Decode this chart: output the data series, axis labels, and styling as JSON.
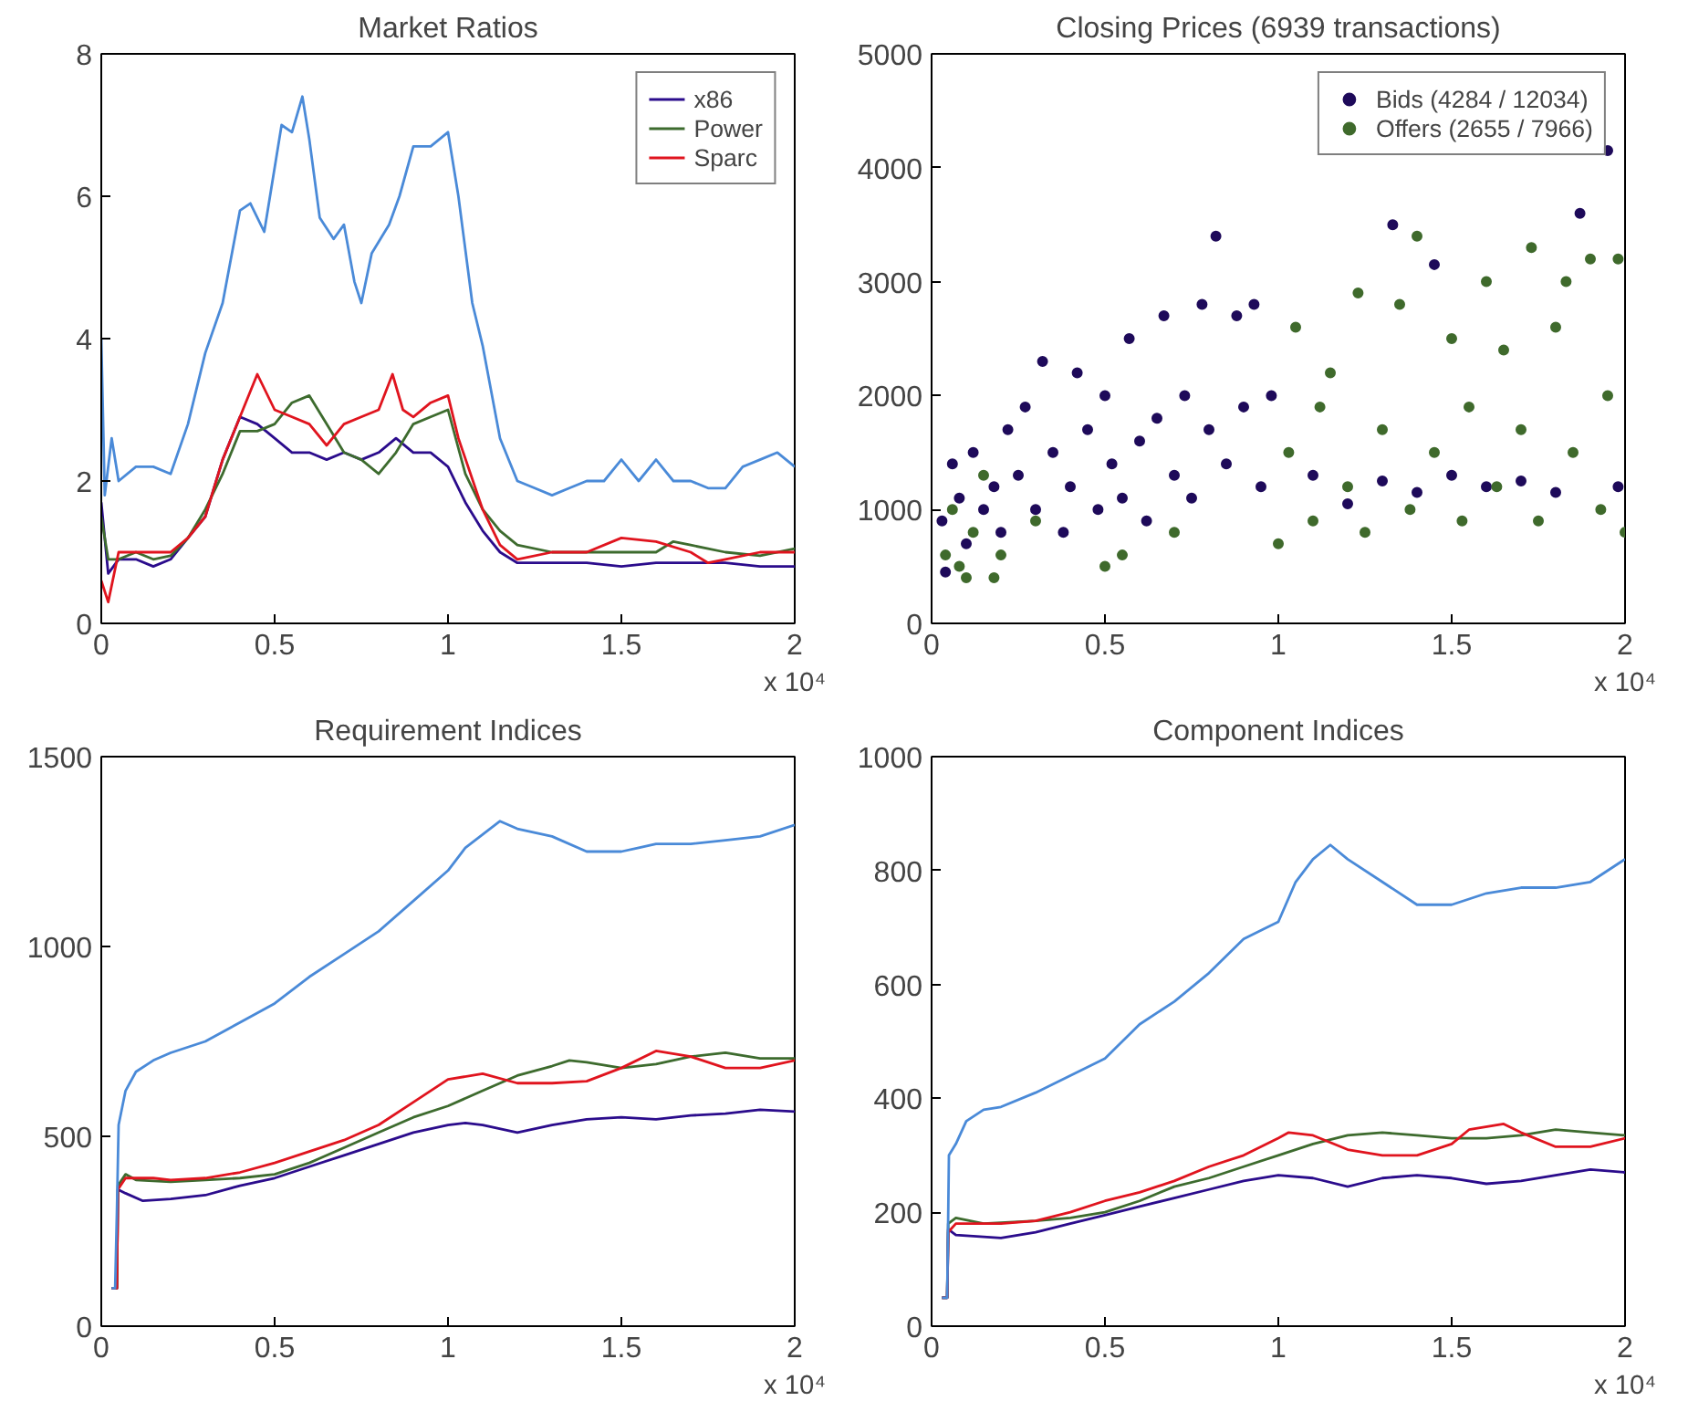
{
  "chart_data": [
    {
      "type": "line",
      "title": "Market Ratios",
      "xlabel": "x 10⁴",
      "legend": "top right",
      "grid": false,
      "xlim": [
        0,
        2
      ],
      "xticks": [
        0,
        0.5,
        1,
        1.5,
        2
      ],
      "ylim": [
        0,
        8
      ],
      "yticks": [
        0,
        2,
        4,
        6,
        8
      ],
      "series": [
        {
          "name": "x86",
          "color": "#2b0c8c",
          "x": [
            0,
            0.02,
            0.05,
            0.1,
            0.15,
            0.2,
            0.25,
            0.3,
            0.35,
            0.4,
            0.45,
            0.5,
            0.55,
            0.6,
            0.65,
            0.7,
            0.75,
            0.8,
            0.85,
            0.9,
            0.95,
            1.0,
            1.05,
            1.1,
            1.15,
            1.2,
            1.3,
            1.4,
            1.5,
            1.6,
            1.7,
            1.8,
            1.9,
            2.0
          ],
          "values": [
            1.7,
            0.7,
            0.9,
            0.9,
            0.8,
            0.9,
            1.2,
            1.5,
            2.3,
            2.9,
            2.8,
            2.6,
            2.4,
            2.4,
            2.3,
            2.4,
            2.3,
            2.4,
            2.6,
            2.4,
            2.4,
            2.2,
            1.7,
            1.3,
            1.0,
            0.85,
            0.85,
            0.85,
            0.8,
            0.85,
            0.85,
            0.85,
            0.8,
            0.8
          ]
        },
        {
          "name": "Power",
          "color": "#3d6b2e",
          "x": [
            0,
            0.02,
            0.05,
            0.1,
            0.15,
            0.2,
            0.25,
            0.3,
            0.35,
            0.4,
            0.45,
            0.5,
            0.55,
            0.6,
            0.65,
            0.7,
            0.75,
            0.8,
            0.85,
            0.9,
            0.95,
            1.0,
            1.05,
            1.1,
            1.15,
            1.2,
            1.3,
            1.4,
            1.5,
            1.6,
            1.65,
            1.7,
            1.8,
            1.9,
            2.0
          ],
          "values": [
            1.5,
            0.9,
            0.9,
            1.0,
            0.9,
            0.95,
            1.2,
            1.6,
            2.1,
            2.7,
            2.7,
            2.8,
            3.1,
            3.2,
            2.8,
            2.4,
            2.3,
            2.1,
            2.4,
            2.8,
            2.9,
            3.0,
            2.1,
            1.6,
            1.3,
            1.1,
            1.0,
            1.0,
            1.0,
            1.0,
            1.15,
            1.1,
            1.0,
            0.95,
            1.05
          ]
        },
        {
          "name": "Sparc",
          "color": "#e0141e",
          "x": [
            0,
            0.02,
            0.05,
            0.1,
            0.15,
            0.2,
            0.25,
            0.3,
            0.35,
            0.4,
            0.45,
            0.5,
            0.55,
            0.6,
            0.65,
            0.7,
            0.75,
            0.8,
            0.84,
            0.87,
            0.9,
            0.95,
            1.0,
            1.03,
            1.1,
            1.15,
            1.2,
            1.3,
            1.4,
            1.5,
            1.6,
            1.7,
            1.75,
            1.8,
            1.9,
            2.0
          ],
          "values": [
            0.6,
            0.3,
            1.0,
            1.0,
            1.0,
            1.0,
            1.2,
            1.5,
            2.3,
            2.9,
            3.5,
            3.0,
            2.9,
            2.8,
            2.5,
            2.8,
            2.9,
            3.0,
            3.5,
            3.0,
            2.9,
            3.1,
            3.2,
            2.6,
            1.6,
            1.1,
            0.9,
            1.0,
            1.0,
            1.2,
            1.15,
            1.0,
            0.85,
            0.9,
            1.0,
            1.0
          ]
        },
        {
          "color": "#4a8ad8",
          "x": [
            0,
            0.01,
            0.03,
            0.05,
            0.1,
            0.15,
            0.2,
            0.25,
            0.3,
            0.35,
            0.4,
            0.43,
            0.47,
            0.52,
            0.55,
            0.58,
            0.6,
            0.63,
            0.67,
            0.7,
            0.73,
            0.75,
            0.78,
            0.83,
            0.86,
            0.9,
            0.95,
            1.0,
            1.03,
            1.07,
            1.1,
            1.15,
            1.2,
            1.25,
            1.3,
            1.35,
            1.4,
            1.45,
            1.5,
            1.55,
            1.6,
            1.65,
            1.7,
            1.75,
            1.8,
            1.85,
            1.9,
            1.95,
            2.0
          ],
          "values": [
            4.0,
            1.8,
            2.6,
            2.0,
            2.2,
            2.2,
            2.1,
            2.8,
            3.8,
            4.5,
            5.8,
            5.9,
            5.5,
            7.0,
            6.9,
            7.4,
            6.8,
            5.7,
            5.4,
            5.6,
            4.8,
            4.5,
            5.2,
            5.6,
            6.0,
            6.7,
            6.7,
            6.9,
            6.0,
            4.5,
            3.9,
            2.6,
            2.0,
            1.9,
            1.8,
            1.9,
            2.0,
            2.0,
            2.3,
            2.0,
            2.3,
            2.0,
            2.0,
            1.9,
            1.9,
            2.2,
            2.3,
            2.4,
            2.2
          ]
        }
      ]
    },
    {
      "type": "scatter",
      "title": "Closing Prices (6939 transactions)",
      "xlabel": "x 10⁴",
      "legend": "top right",
      "grid": false,
      "marker": "circle",
      "xlim": [
        0,
        2
      ],
      "xticks": [
        0,
        0.5,
        1,
        1.5,
        2
      ],
      "ylim": [
        0,
        5000
      ],
      "yticks": [
        0,
        1000,
        2000,
        3000,
        4000,
        5000
      ],
      "series": [
        {
          "name": "Bids (4284 / 12034)",
          "color": "#1e0a5a",
          "x": [
            0.03,
            0.04,
            0.06,
            0.08,
            0.1,
            0.12,
            0.15,
            0.18,
            0.2,
            0.22,
            0.25,
            0.27,
            0.3,
            0.32,
            0.35,
            0.38,
            0.4,
            0.42,
            0.45,
            0.48,
            0.5,
            0.52,
            0.55,
            0.57,
            0.6,
            0.62,
            0.65,
            0.67,
            0.7,
            0.73,
            0.75,
            0.78,
            0.8,
            0.82,
            0.85,
            0.88,
            0.9,
            0.93,
            0.95,
            0.98,
            1.1,
            1.2,
            1.3,
            1.33,
            1.4,
            1.45,
            1.5,
            1.6,
            1.7,
            1.8,
            1.87,
            1.95,
            1.98
          ],
          "values": [
            900,
            450,
            1400,
            1100,
            700,
            1500,
            1000,
            1200,
            800,
            1700,
            1300,
            1900,
            1000,
            2300,
            1500,
            800,
            1200,
            2200,
            1700,
            1000,
            2000,
            1400,
            1100,
            2500,
            1600,
            900,
            1800,
            2700,
            1300,
            2000,
            1100,
            2800,
            1700,
            3400,
            1400,
            2700,
            1900,
            2800,
            1200,
            2000,
            1300,
            1050,
            1250,
            3500,
            1150,
            3150,
            1300,
            1200,
            1250,
            1150,
            3600,
            4150,
            1200
          ]
        },
        {
          "name": "Offers (2655 / 7966)",
          "color": "#3f6a2c",
          "x": [
            0.04,
            0.06,
            0.08,
            0.1,
            0.12,
            0.15,
            0.18,
            0.2,
            0.3,
            0.5,
            0.55,
            0.7,
            1.0,
            1.03,
            1.05,
            1.1,
            1.12,
            1.15,
            1.2,
            1.23,
            1.25,
            1.3,
            1.35,
            1.38,
            1.4,
            1.45,
            1.5,
            1.53,
            1.55,
            1.6,
            1.63,
            1.65,
            1.7,
            1.73,
            1.75,
            1.8,
            1.83,
            1.85,
            1.9,
            1.93,
            1.95,
            1.98,
            2.0
          ],
          "values": [
            600,
            1000,
            500,
            400,
            800,
            1300,
            400,
            600,
            900,
            500,
            600,
            800,
            700,
            1500,
            2600,
            900,
            1900,
            2200,
            1200,
            2900,
            800,
            1700,
            2800,
            1000,
            3400,
            1500,
            2500,
            900,
            1900,
            3000,
            1200,
            2400,
            1700,
            3300,
            900,
            2600,
            3000,
            1500,
            3200,
            1000,
            2000,
            3200,
            800
          ]
        }
      ]
    },
    {
      "type": "line",
      "title": "Requirement Indices",
      "xlabel": "x 10⁴",
      "grid": false,
      "xlim": [
        0,
        2
      ],
      "xticks": [
        0,
        0.5,
        1,
        1.5,
        2
      ],
      "ylim": [
        0,
        1500
      ],
      "yticks": [
        0,
        500,
        1000,
        1500
      ],
      "series": [
        {
          "color": "#2b0c8c",
          "x": [
            0.03,
            0.045,
            0.048,
            0.07,
            0.12,
            0.2,
            0.3,
            0.4,
            0.5,
            0.6,
            0.7,
            0.8,
            0.9,
            1.0,
            1.05,
            1.1,
            1.2,
            1.3,
            1.4,
            1.5,
            1.6,
            1.7,
            1.8,
            1.9,
            2.0
          ],
          "values": [
            100,
            100,
            360,
            350,
            330,
            335,
            345,
            370,
            390,
            420,
            450,
            480,
            510,
            530,
            535,
            530,
            510,
            530,
            545,
            550,
            545,
            555,
            560,
            570,
            565
          ]
        },
        {
          "color": "#3d6b2e",
          "x": [
            0.03,
            0.045,
            0.048,
            0.07,
            0.1,
            0.2,
            0.3,
            0.4,
            0.5,
            0.6,
            0.7,
            0.8,
            0.9,
            1.0,
            1.1,
            1.2,
            1.3,
            1.35,
            1.4,
            1.5,
            1.6,
            1.7,
            1.8,
            1.9,
            2.0
          ],
          "values": [
            100,
            100,
            370,
            400,
            385,
            380,
            385,
            390,
            400,
            430,
            470,
            510,
            550,
            580,
            620,
            660,
            685,
            700,
            695,
            680,
            690,
            710,
            720,
            705,
            705
          ]
        },
        {
          "color": "#e0141e",
          "x": [
            0.03,
            0.045,
            0.048,
            0.07,
            0.15,
            0.2,
            0.3,
            0.4,
            0.5,
            0.6,
            0.7,
            0.8,
            0.9,
            1.0,
            1.1,
            1.2,
            1.3,
            1.4,
            1.5,
            1.6,
            1.7,
            1.8,
            1.9,
            2.0
          ],
          "values": [
            100,
            100,
            360,
            390,
            390,
            385,
            390,
            405,
            430,
            460,
            490,
            530,
            590,
            650,
            665,
            640,
            640,
            645,
            680,
            725,
            710,
            680,
            680,
            700
          ]
        },
        {
          "color": "#4a8ad8",
          "x": [
            0.03,
            0.04,
            0.045,
            0.05,
            0.07,
            0.1,
            0.15,
            0.2,
            0.3,
            0.4,
            0.5,
            0.6,
            0.7,
            0.8,
            0.9,
            1.0,
            1.05,
            1.15,
            1.2,
            1.3,
            1.4,
            1.5,
            1.55,
            1.6,
            1.7,
            1.8,
            1.9,
            2.0
          ],
          "values": [
            100,
            100,
            300,
            530,
            620,
            670,
            700,
            720,
            750,
            800,
            850,
            920,
            980,
            1040,
            1120,
            1200,
            1260,
            1330,
            1310,
            1290,
            1250,
            1250,
            1260,
            1270,
            1270,
            1280,
            1290,
            1320
          ]
        }
      ]
    },
    {
      "type": "line",
      "title": "Component Indices",
      "xlabel": "x 10⁴",
      "grid": false,
      "xlim": [
        0,
        2
      ],
      "xticks": [
        0,
        0.5,
        1,
        1.5,
        2
      ],
      "ylim": [
        0,
        1000
      ],
      "yticks": [
        0,
        200,
        400,
        600,
        800,
        1000
      ],
      "series": [
        {
          "color": "#2b0c8c",
          "x": [
            0.03,
            0.045,
            0.048,
            0.07,
            0.2,
            0.3,
            0.4,
            0.5,
            0.6,
            0.7,
            0.8,
            0.9,
            1.0,
            1.1,
            1.2,
            1.3,
            1.4,
            1.5,
            1.6,
            1.7,
            1.8,
            1.9,
            2.0
          ],
          "values": [
            50,
            50,
            170,
            160,
            155,
            165,
            180,
            195,
            210,
            225,
            240,
            255,
            265,
            260,
            245,
            260,
            265,
            260,
            250,
            255,
            265,
            275,
            270
          ]
        },
        {
          "color": "#3d6b2e",
          "x": [
            0.03,
            0.045,
            0.048,
            0.07,
            0.15,
            0.3,
            0.4,
            0.5,
            0.6,
            0.7,
            0.8,
            0.9,
            1.0,
            1.1,
            1.2,
            1.3,
            1.4,
            1.5,
            1.6,
            1.7,
            1.8,
            1.9,
            2.0
          ],
          "values": [
            50,
            50,
            180,
            190,
            180,
            185,
            190,
            200,
            220,
            245,
            260,
            280,
            300,
            320,
            335,
            340,
            335,
            330,
            330,
            335,
            345,
            340,
            335
          ]
        },
        {
          "color": "#e0141e",
          "x": [
            0.03,
            0.045,
            0.048,
            0.07,
            0.15,
            0.2,
            0.3,
            0.4,
            0.5,
            0.6,
            0.7,
            0.8,
            0.9,
            1.0,
            1.03,
            1.1,
            1.2,
            1.3,
            1.4,
            1.5,
            1.55,
            1.65,
            1.7,
            1.8,
            1.9,
            2.0
          ],
          "values": [
            50,
            50,
            165,
            180,
            180,
            180,
            185,
            200,
            220,
            235,
            255,
            280,
            300,
            330,
            340,
            335,
            310,
            300,
            300,
            320,
            345,
            355,
            340,
            315,
            315,
            330
          ]
        },
        {
          "color": "#4a8ad8",
          "x": [
            0.03,
            0.045,
            0.05,
            0.07,
            0.1,
            0.15,
            0.2,
            0.3,
            0.4,
            0.5,
            0.6,
            0.7,
            0.8,
            0.9,
            1.0,
            1.05,
            1.1,
            1.15,
            1.2,
            1.3,
            1.4,
            1.5,
            1.55,
            1.6,
            1.7,
            1.8,
            1.9,
            2.0
          ],
          "values": [
            50,
            50,
            300,
            320,
            360,
            380,
            385,
            410,
            440,
            470,
            530,
            570,
            620,
            680,
            710,
            780,
            820,
            845,
            820,
            780,
            740,
            740,
            750,
            760,
            770,
            770,
            780,
            820
          ]
        }
      ]
    }
  ]
}
